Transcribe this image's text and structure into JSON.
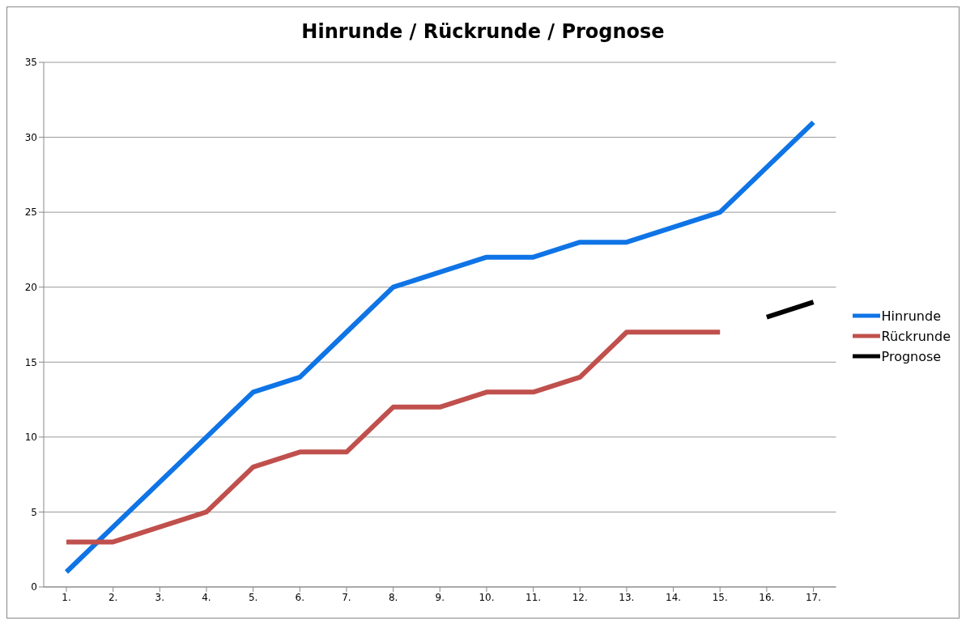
{
  "chart_data": {
    "type": "line",
    "title": "Hinrunde / Rückrunde / Prognose",
    "categories": [
      "1.",
      "2.",
      "3.",
      "4.",
      "5.",
      "6.",
      "7.",
      "8.",
      "9.",
      "10.",
      "11.",
      "12.",
      "13.",
      "14.",
      "15.",
      "16.",
      "17."
    ],
    "series": [
      {
        "name": "Hinrunde",
        "color": "#0f74e6",
        "values": [
          1,
          4,
          7,
          10,
          13,
          14,
          17,
          20,
          21,
          22,
          22,
          23,
          23,
          24,
          25,
          28,
          31
        ]
      },
      {
        "name": "Rückrunde",
        "color": "#c0504d",
        "values": [
          3,
          3,
          4,
          5,
          8,
          9,
          9,
          12,
          12,
          13,
          13,
          14,
          17,
          17,
          17,
          null,
          null
        ]
      },
      {
        "name": "Prognose",
        "color": "#000000",
        "values": [
          null,
          null,
          null,
          null,
          null,
          null,
          null,
          null,
          null,
          null,
          null,
          null,
          null,
          null,
          null,
          18,
          19
        ]
      }
    ],
    "ylim": [
      0,
      35
    ],
    "yticks": [
      0,
      5,
      10,
      15,
      20,
      25,
      30,
      35
    ],
    "grid": "y",
    "legend": "right",
    "marker": "none",
    "line_style": "solid"
  }
}
